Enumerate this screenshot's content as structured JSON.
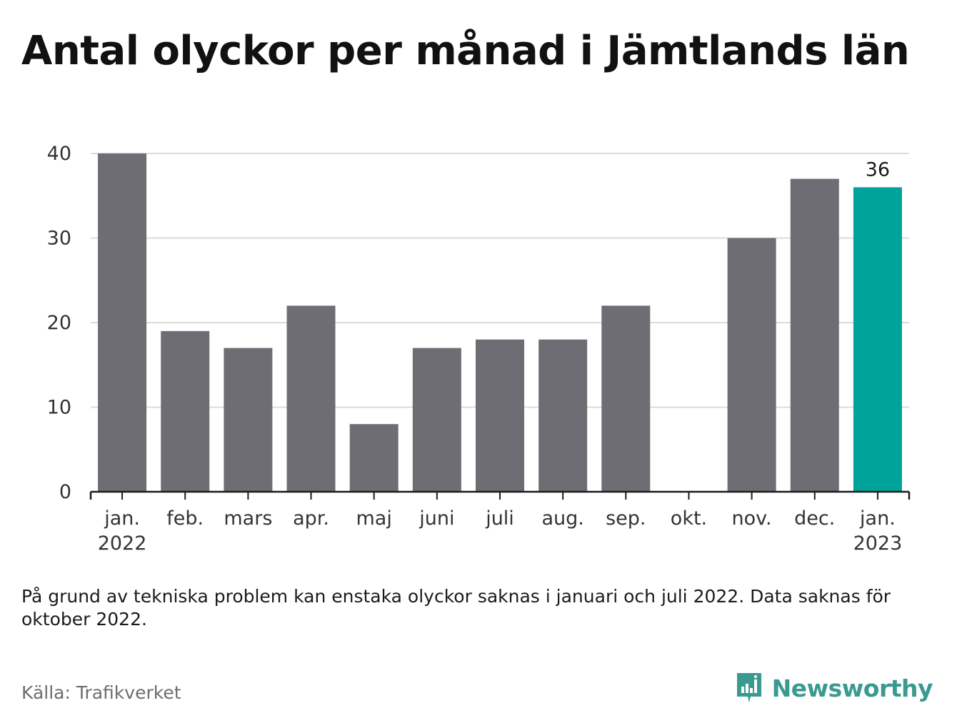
{
  "title": "Antal olyckor per månad i Jämtlands län",
  "note": "På grund av tekniska problem kan enstaka olyckor saknas i januari och juli 2022. Data saknas för oktober 2022.",
  "source": "Källa: Trafikverket",
  "brand": {
    "name": "Newsworthy",
    "icon": "newsworthy-logo-icon",
    "color": "#3a9a90"
  },
  "chart_data": {
    "type": "bar",
    "categories": [
      "jan. 2022",
      "feb.",
      "mars",
      "apr.",
      "maj",
      "juni",
      "juli",
      "aug.",
      "sep.",
      "okt.",
      "nov.",
      "dec.",
      "jan. 2023"
    ],
    "tick_labels": [
      [
        "jan.",
        "2022"
      ],
      [
        "feb."
      ],
      [
        "mars"
      ],
      [
        "apr."
      ],
      [
        "maj"
      ],
      [
        "juni"
      ],
      [
        "juli"
      ],
      [
        "aug."
      ],
      [
        "sep."
      ],
      [
        "okt."
      ],
      [
        "nov."
      ],
      [
        "dec."
      ],
      [
        "jan.",
        "2023"
      ]
    ],
    "values": [
      40,
      19,
      17,
      22,
      8,
      17,
      18,
      18,
      22,
      null,
      30,
      37,
      36
    ],
    "highlight_index": 12,
    "highlight_label": "36",
    "ylim": [
      0,
      40
    ],
    "yticks": [
      0,
      10,
      20,
      30,
      40
    ],
    "grid": true,
    "colors": {
      "bar": "#6e6d73",
      "highlight": "#00a39a",
      "grid": "#dcdcdc",
      "axis": "#1b1b1b"
    },
    "title": "",
    "xlabel": "",
    "ylabel": ""
  }
}
